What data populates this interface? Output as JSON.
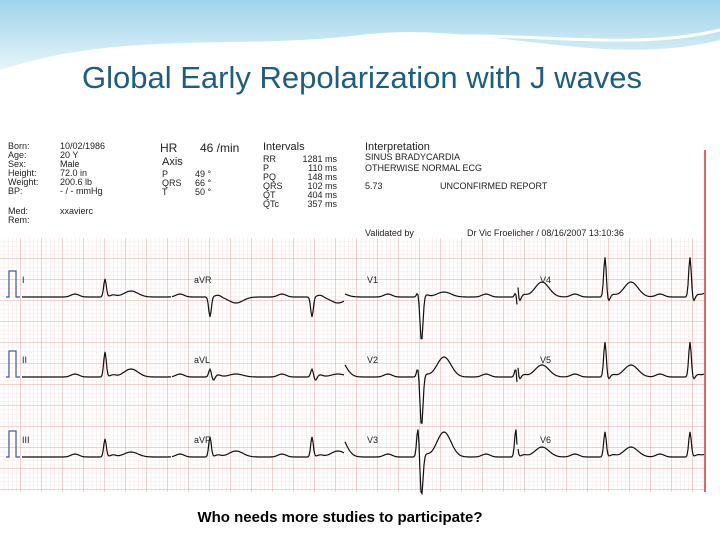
{
  "header": {
    "title": "Global Early Repolarization with J waves"
  },
  "patient": [
    {
      "label": "Born:",
      "value": "10/02/1986"
    },
    {
      "label": "Age:",
      "value": "20 Y"
    },
    {
      "label": "Sex:",
      "value": "Male"
    },
    {
      "label": "Height:",
      "value": "72.0 in"
    },
    {
      "label": "Weight:",
      "value": "200.6 lb"
    },
    {
      "label": "BP:",
      "value": "- / - mmHg"
    },
    {
      "label": "Med:",
      "value": "xxavierc"
    },
    {
      "label": "Rem:"
    }
  ],
  "measurements": {
    "hr_label": "HR",
    "hr_value": "46 /min",
    "axis_label": "Axis",
    "axis": [
      {
        "label": "P",
        "value": "49 °"
      },
      {
        "label": "QRS",
        "value": "66 °"
      },
      {
        "label": "T",
        "value": "50 °"
      }
    ]
  },
  "intervals": {
    "title": "Intervals",
    "rows": [
      {
        "label": "RR",
        "value": "1281 ms"
      },
      {
        "label": "P",
        "value": "110 ms"
      },
      {
        "label": "PQ",
        "value": "148 ms"
      },
      {
        "label": "QRS",
        "value": "102 ms"
      },
      {
        "label": "QT",
        "value": "404 ms"
      },
      {
        "label": "QTc",
        "value": "357 ms"
      }
    ]
  },
  "interpretation": {
    "title": "Interpretation",
    "lines": [
      "SINUS BRADYCARDIA",
      "OTHERWISE NORMAL ECG"
    ],
    "code": "5.73",
    "status": "UNCONFIRMED REPORT",
    "validated_label": "Validated by",
    "validated_value": "Dr Vic Froelicher / 08/16/2007 13:10:36"
  },
  "leads": [
    "I",
    "aVR",
    "V1",
    "V4",
    "II",
    "aVL",
    "V2",
    "V5",
    "III",
    "aVF",
    "V3",
    "V6"
  ],
  "caption": "Who needs more studies to participate?"
}
